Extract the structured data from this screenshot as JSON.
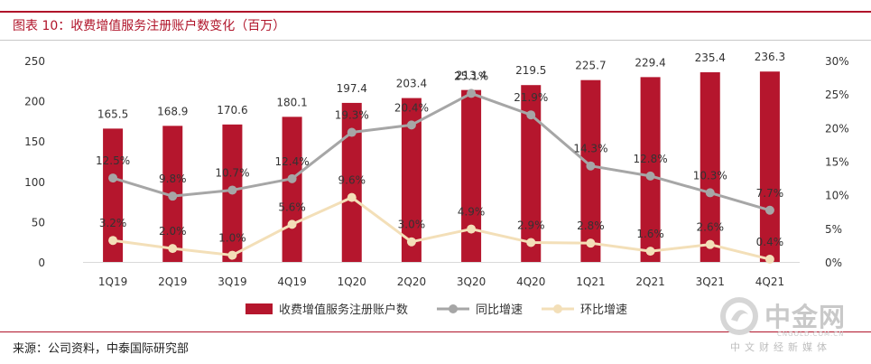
{
  "figure": {
    "title": "图表 10：收费增值服务注册账户数变化（百万）",
    "source": "来源：公司资料，中泰国际研究部"
  },
  "watermark": {
    "name": "中金网",
    "url": "CNGOLD.COM.CN",
    "tagline": "中文财经新媒体"
  },
  "colors": {
    "bar": "#b5162d",
    "yoy": "#a6a6a6",
    "qoq": "#f3dfb8",
    "accent": "#b0142a"
  },
  "chart_data": {
    "type": "bar",
    "categories": [
      "1Q19",
      "2Q19",
      "3Q19",
      "4Q19",
      "1Q20",
      "2Q20",
      "3Q20",
      "4Q20",
      "1Q21",
      "2Q21",
      "3Q21",
      "4Q21"
    ],
    "ylim": [
      0,
      250
    ],
    "yticks": [
      "0",
      "50",
      "100",
      "150",
      "200",
      "250"
    ],
    "y2lim": [
      0,
      30
    ],
    "y2ticks": [
      "0%",
      "5%",
      "10%",
      "15%",
      "20%",
      "25%",
      "30%"
    ],
    "grid": false,
    "legend_position": "bottom",
    "series": [
      {
        "name": "收费增值服务注册账户数",
        "type": "bar",
        "axis": "left",
        "values": [
          165.5,
          168.9,
          170.6,
          180.1,
          197.4,
          203.4,
          213.4,
          219.5,
          225.7,
          229.4,
          235.4,
          236.3
        ],
        "labels": [
          "165.5",
          "168.9",
          "170.6",
          "180.1",
          "197.4",
          "203.4",
          "213.4",
          "219.5",
          "225.7",
          "229.4",
          "235.4",
          "236.3"
        ]
      },
      {
        "name": "同比增速",
        "type": "line",
        "axis": "right",
        "values": [
          12.5,
          9.8,
          10.7,
          12.4,
          19.3,
          20.4,
          25.1,
          21.9,
          14.3,
          12.8,
          10.3,
          7.7
        ],
        "labels": [
          "12.5%",
          "9.8%",
          "10.7%",
          "12.4%",
          "19.3%",
          "20.4%",
          "25.1%",
          "21.9%",
          "14.3%",
          "12.8%",
          "10.3%",
          "7.7%"
        ]
      },
      {
        "name": "环比增速",
        "type": "line",
        "axis": "right",
        "values": [
          3.2,
          2.0,
          1.0,
          5.6,
          9.6,
          3.0,
          4.9,
          2.9,
          2.8,
          1.6,
          2.6,
          0.4
        ],
        "labels": [
          "3.2%",
          "2.0%",
          "1.0%",
          "5.6%",
          "9.6%",
          "3.0%",
          "4.9%",
          "2.9%",
          "2.8%",
          "1.6%",
          "2.6%",
          "0.4%"
        ]
      }
    ]
  }
}
